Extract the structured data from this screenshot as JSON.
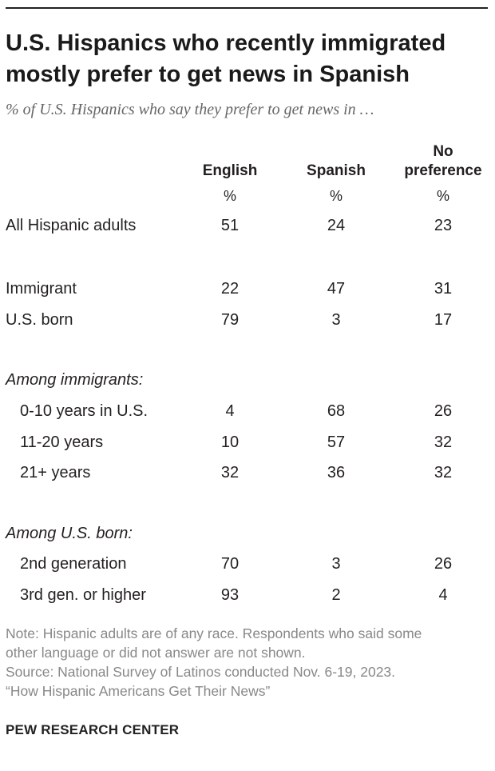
{
  "title": "U.S. Hispanics who recently immigrated mostly prefer to get news in Spanish",
  "subtitle": "% of U.S. Hispanics who say they prefer to get news in …",
  "columns": [
    "English",
    "Spanish",
    "No preference"
  ],
  "unit": "%",
  "sections": {
    "immigrants": "Among immigrants:",
    "us_born": "Among U.S. born:"
  },
  "chart_data": {
    "type": "table",
    "title": "U.S. Hispanics who recently immigrated mostly prefer to get news in Spanish",
    "subtitle": "% of U.S. Hispanics who say they prefer to get news in …",
    "columns": [
      "English",
      "Spanish",
      "No preference"
    ],
    "rows": [
      {
        "label": "All Hispanic adults",
        "values": [
          51,
          24,
          23
        ]
      },
      {
        "label": "Immigrant",
        "values": [
          22,
          47,
          31
        ]
      },
      {
        "label": "U.S. born",
        "values": [
          79,
          3,
          17
        ]
      },
      {
        "label": "0-10 years in U.S.",
        "group": "Among immigrants:",
        "values": [
          4,
          68,
          26
        ]
      },
      {
        "label": "11-20 years",
        "group": "Among immigrants:",
        "values": [
          10,
          57,
          32
        ]
      },
      {
        "label": "21+ years",
        "group": "Among immigrants:",
        "values": [
          32,
          36,
          32
        ]
      },
      {
        "label": "2nd generation",
        "group": "Among U.S. born:",
        "values": [
          70,
          3,
          26
        ]
      },
      {
        "label": "3rd gen. or higher",
        "group": "Among U.S. born:",
        "values": [
          93,
          2,
          4
        ]
      }
    ]
  },
  "notes": [
    "Note: Hispanic adults are of any race. Respondents who said some",
    "other language or did not answer are not shown.",
    "Source: National Survey of Latinos conducted Nov. 6-19, 2023.",
    "“How Hispanic Americans Get Their News”"
  ],
  "brand": "PEW RESEARCH CENTER"
}
